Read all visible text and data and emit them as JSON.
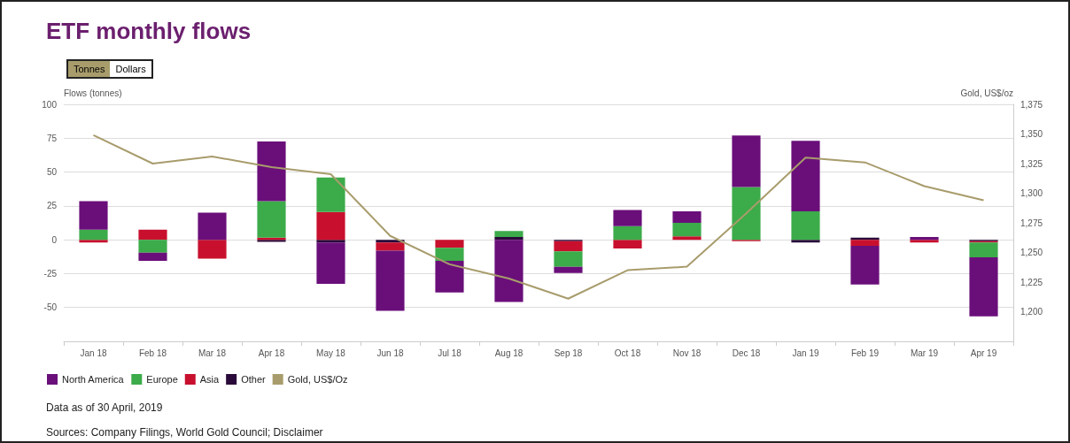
{
  "chart_data": {
    "type": "bar",
    "title": "ETF monthly flows",
    "ylabel": "Flows (tonnes)",
    "y2label": "Gold, US$/oz",
    "categories": [
      "Jan 18",
      "Feb 18",
      "Mar 18",
      "Apr 18",
      "May 18",
      "Jun 18",
      "Jul 18",
      "Aug 18",
      "Sep 18",
      "Oct 18",
      "Nov 18",
      "Dec 18",
      "Jan 19",
      "Feb 19",
      "Mar 19",
      "Apr 19"
    ],
    "stacked": true,
    "series": [
      {
        "name": "Other",
        "color": "#2a0a3a",
        "values": [
          0,
          0,
          0,
          -1.5,
          -2,
          -2,
          0,
          2,
          -1,
          0,
          0,
          0,
          -2,
          1.5,
          0,
          -1
        ]
      },
      {
        "name": "Asia",
        "color": "#c8102e",
        "values": [
          -2,
          7.5,
          -14,
          1.5,
          20.5,
          -6,
          -6,
          0,
          -7.5,
          -6.5,
          2.5,
          -1,
          0,
          -4.5,
          -2,
          -1
        ]
      },
      {
        "name": "Europe",
        "color": "#3cab4a",
        "values": [
          7.5,
          -9.5,
          0,
          27,
          25.5,
          0,
          -9.5,
          4.5,
          -11.5,
          10,
          10,
          39,
          21,
          0,
          0,
          -11
        ]
      },
      {
        "name": "North America",
        "color": "#6a0f7a",
        "values": [
          21,
          -6,
          20,
          44,
          -30.5,
          -44.5,
          -23.5,
          -46,
          -4.5,
          12,
          8.5,
          38,
          52,
          -28.5,
          2,
          -43.5
        ]
      },
      {
        "name": "Gold, US$/Oz",
        "type": "line",
        "axis": "y2",
        "color": "#a89c6c",
        "values": [
          1349,
          1325,
          1331,
          1322,
          1316,
          1264,
          1240,
          1228,
          1211,
          1235,
          1238,
          1283,
          1330,
          1326,
          1306,
          1294
        ]
      }
    ],
    "ylim": [
      -75,
      100
    ],
    "yticks": [
      -50,
      -25,
      0,
      25,
      50,
      75,
      100
    ],
    "y2lim": [
      1175,
      1375
    ],
    "y2ticks": [
      {
        "value": 1200,
        "label": "1,200"
      },
      {
        "value": 1225,
        "label": "1,225"
      },
      {
        "value": 1250,
        "label": "1,250"
      },
      {
        "value": 1275,
        "label": "1,275"
      },
      {
        "value": 1300,
        "label": "1,300"
      },
      {
        "value": 1325,
        "label": "1,325"
      },
      {
        "value": 1350,
        "label": "1,350"
      },
      {
        "value": 1375,
        "label": "1,375"
      }
    ],
    "grid": "y",
    "legend": "bottom left",
    "marker": "none",
    "annotations": [
      "Tonnes",
      "Dollars",
      "Data as of 30 April, 2019",
      "Sources: Company Filings, World Gold Council; Disclaimer"
    ]
  }
}
